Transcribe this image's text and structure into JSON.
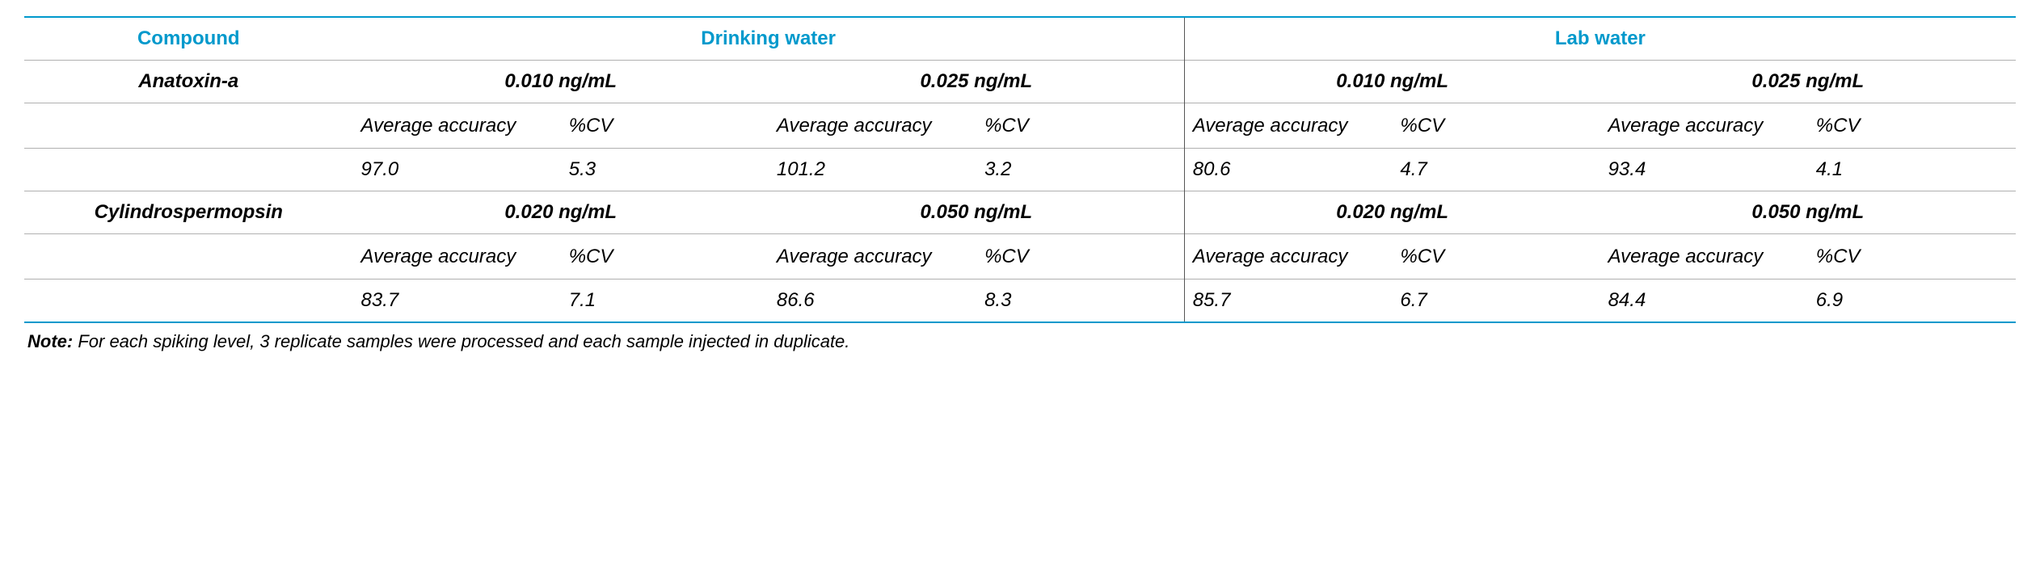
{
  "table": {
    "headers": {
      "compound": "Compound",
      "drinking_water": "Drinking water",
      "lab_water": "Lab water"
    },
    "sub_labels": {
      "avg_accuracy": "Average accuracy",
      "pct_cv": "%CV"
    },
    "compounds": [
      {
        "name": "Anatoxin-a",
        "drinking": {
          "c1": {
            "conc": "0.010 ng/mL",
            "avg": "97.0",
            "cv": "5.3"
          },
          "c2": {
            "conc": "0.025 ng/mL",
            "avg": "101.2",
            "cv": "3.2"
          }
        },
        "lab": {
          "c1": {
            "conc": "0.010 ng/mL",
            "avg": "80.6",
            "cv": "4.7"
          },
          "c2": {
            "conc": "0.025 ng/mL",
            "avg": "93.4",
            "cv": "4.1"
          }
        }
      },
      {
        "name": "Cylindrospermopsin",
        "drinking": {
          "c1": {
            "conc": "0.020 ng/mL",
            "avg": "83.7",
            "cv": "7.1"
          },
          "c2": {
            "conc": "0.050 ng/mL",
            "avg": "86.6",
            "cv": "8.3"
          }
        },
        "lab": {
          "c1": {
            "conc": "0.020 ng/mL",
            "avg": "85.7",
            "cv": "6.7"
          },
          "c2": {
            "conc": "0.050 ng/mL",
            "avg": "84.4",
            "cv": "6.9"
          }
        }
      }
    ],
    "note_label": "Note:",
    "note_text": " For each spiking level, 3 replicate samples were processed and each sample injected in duplicate."
  },
  "style": {
    "accent_color": "#0099cc",
    "gridline_color": "#b0b0b0",
    "separator_color": "#555555",
    "background_color": "#ffffff",
    "text_color": "#000000",
    "font_family": "Arial, Helvetica, sans-serif",
    "header_fontsize_pt": 18,
    "body_fontsize_pt": 18,
    "note_fontsize_pt": 16
  }
}
